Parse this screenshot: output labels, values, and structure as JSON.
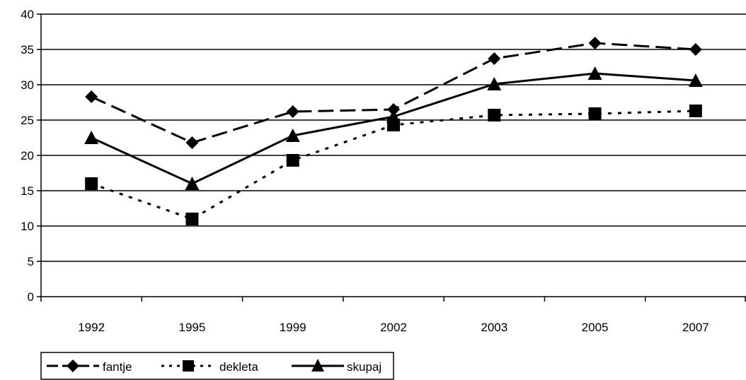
{
  "chart_data": {
    "type": "line",
    "categories": [
      "1992",
      "1995",
      "1999",
      "2002",
      "2003",
      "2005",
      "2007"
    ],
    "ylim": [
      0,
      40
    ],
    "yticks": [
      0,
      5,
      10,
      15,
      20,
      25,
      30,
      35,
      40
    ],
    "grid": "horizontal",
    "legend_position": "bottom-left",
    "series": [
      {
        "name": "fantje",
        "values": [
          28.3,
          21.8,
          26.2,
          26.5,
          33.7,
          35.9,
          35.0
        ],
        "marker": "diamond",
        "line_style": "long-dash",
        "color": "#000000"
      },
      {
        "name": "dekleta",
        "values": [
          16.0,
          11.0,
          19.3,
          24.3,
          25.7,
          25.9,
          26.3
        ],
        "marker": "square",
        "line_style": "dotted",
        "color": "#000000"
      },
      {
        "name": "skupaj",
        "values": [
          22.5,
          16.0,
          22.8,
          25.5,
          30.1,
          31.6,
          30.6
        ],
        "marker": "triangle",
        "line_style": "solid",
        "color": "#000000"
      }
    ]
  }
}
